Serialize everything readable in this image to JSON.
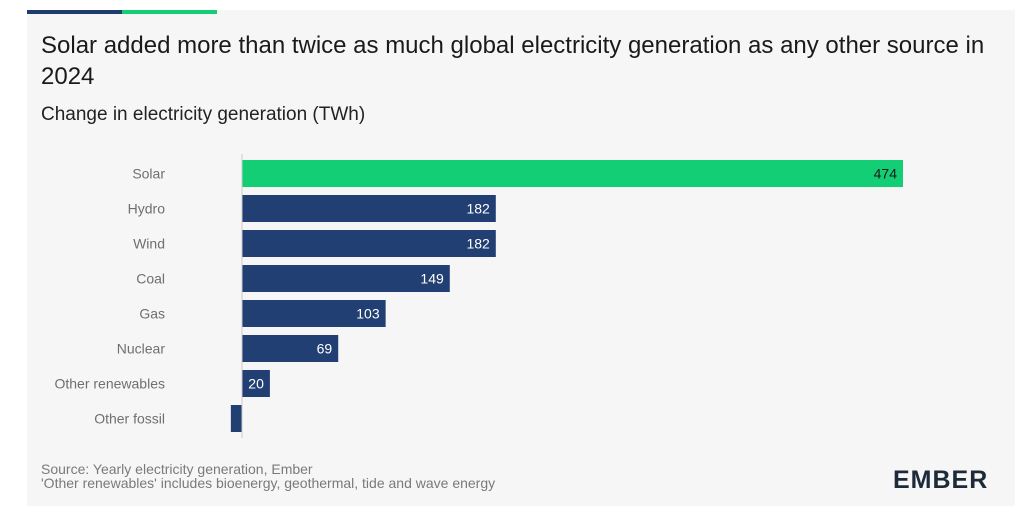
{
  "header": {
    "title": "Solar added more than twice as much global electricity generation as any other source in 2024",
    "subtitle": "Change in electricity generation (TWh)"
  },
  "footer": {
    "source": "Source: Yearly electricity generation, Ember",
    "note": "'Other renewables' includes bioenergy, geothermal, tide and wave energy"
  },
  "brand": {
    "logo_text": "EMBER"
  },
  "colors": {
    "highlight": "#13ce74",
    "bar": "#213f72",
    "accent_navy": "#1f3c6e"
  },
  "chart_data": {
    "type": "bar",
    "orientation": "horizontal",
    "title": "Solar added more than twice as much global electricity generation as any other source in 2024",
    "subtitle": "Change in electricity generation (TWh)",
    "categories": [
      "Solar",
      "Hydro",
      "Wind",
      "Coal",
      "Gas",
      "Nuclear",
      "Other renewables",
      "Other fossil"
    ],
    "values": [
      474,
      182,
      182,
      149,
      103,
      69,
      20,
      -8
    ],
    "data_labels": [
      "474",
      "182",
      "182",
      "149",
      "103",
      "69",
      "20",
      ""
    ],
    "highlight_category": "Solar",
    "xlim": [
      -10,
      474
    ],
    "grid": false,
    "legend": "none"
  }
}
